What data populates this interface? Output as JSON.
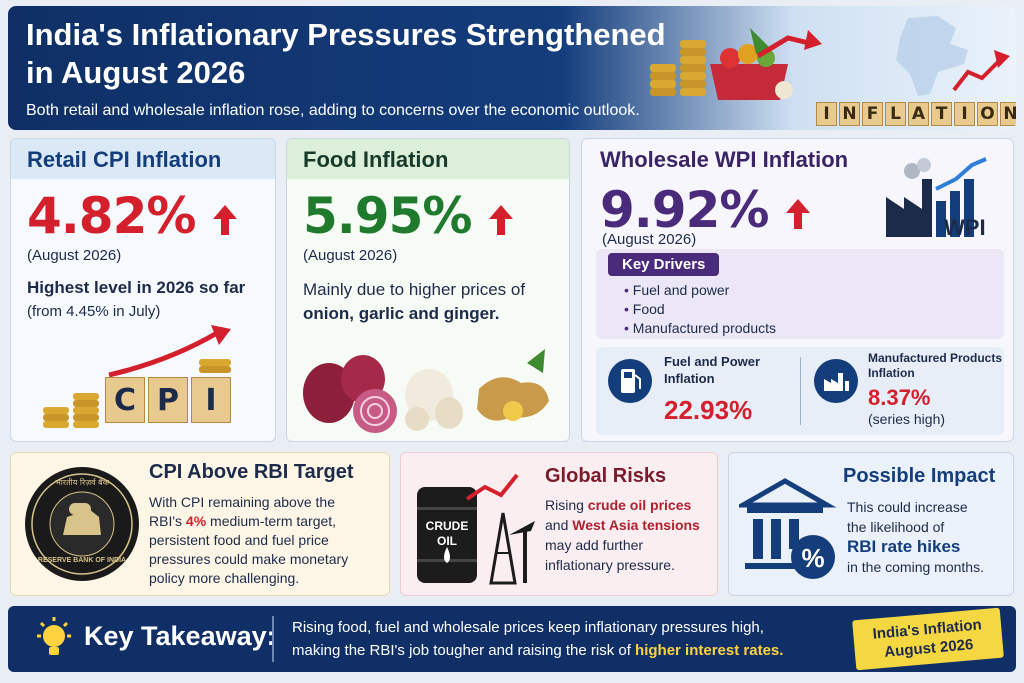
{
  "header": {
    "title_line1": "India's Inflationary Pressures Strengthened",
    "title_line2": "in August 2026",
    "subtitle": "Both retail and wholesale inflation rose, adding to concerns over the economic outlook.",
    "inflation_letters": [
      "I",
      "N",
      "F",
      "L",
      "A",
      "T",
      "I",
      "O",
      "N"
    ]
  },
  "cpi": {
    "heading": "Retail CPI Inflation",
    "value": "4.82%",
    "period": "(August 2026)",
    "note": "Highest level in 2026 so far",
    "from": "(from 4.45% in July)",
    "blocks": [
      "C",
      "P",
      "I"
    ]
  },
  "food": {
    "heading": "Food Inflation",
    "value": "5.95%",
    "period": "(August 2026)",
    "note_pre": "Mainly due to higher prices of",
    "note_bold": "onion, garlic and ginger."
  },
  "wpi": {
    "heading": "Wholesale WPI Inflation",
    "value": "9.92%",
    "period": "(August 2026)",
    "badge": "WPI",
    "drivers_label": "Key Drivers",
    "drivers": [
      "Fuel and power",
      "Food",
      "Manufactured products"
    ],
    "fuel_label_1": "Fuel and Power",
    "fuel_label_2": "Inflation",
    "fuel_value": "22.93%",
    "mfg_label_1": "Manufactured Products",
    "mfg_label_2": "Inflation",
    "mfg_value": "8.37%",
    "mfg_note": "(series high)"
  },
  "rbi": {
    "heading": "CPI Above RBI Target",
    "line1": "With CPI remaining above the",
    "line2_pre": "RBI's ",
    "line2_bold": "4%",
    "line2_post": " medium-term target,",
    "line3": "persistent food and fuel price",
    "line4": "pressures could make monetary",
    "line5": "policy more challenging.",
    "seal_text": "RESERVE BANK OF INDIA",
    "seal_hindi": "भारतीय रिज़र्व बैंक"
  },
  "risk": {
    "heading": "Global Risks",
    "line1_pre": "Rising ",
    "line1_bold": "crude oil prices",
    "line2_pre": "and ",
    "line2_bold": "West Asia tensions",
    "line3": "may add further",
    "line4": "inflationary pressure.",
    "barrel_1": "CRUDE",
    "barrel_2": "OIL"
  },
  "impact": {
    "heading": "Possible Impact",
    "line1": "This could increase",
    "line2": "the likelihood of",
    "line3_bold": "RBI rate hikes",
    "line4": "in the coming months.",
    "percent": "%"
  },
  "footer": {
    "label": "Key Takeaway:",
    "msg_line1": "Rising food, fuel and wholesale prices keep inflationary pressures high,",
    "msg_line2_pre": "making the RBI's job tougher and raising the risk of ",
    "msg_line2_hl": "higher interest rates.",
    "stamp_line1": "India's Inflation",
    "stamp_line2": "August 2026"
  },
  "colors": {
    "navy": "#0f2f66",
    "cpi_red": "#d4202c",
    "food_green": "#1f7a2e",
    "wpi_purple": "#4a2a7a",
    "highlight_yellow": "#ffd23f"
  }
}
